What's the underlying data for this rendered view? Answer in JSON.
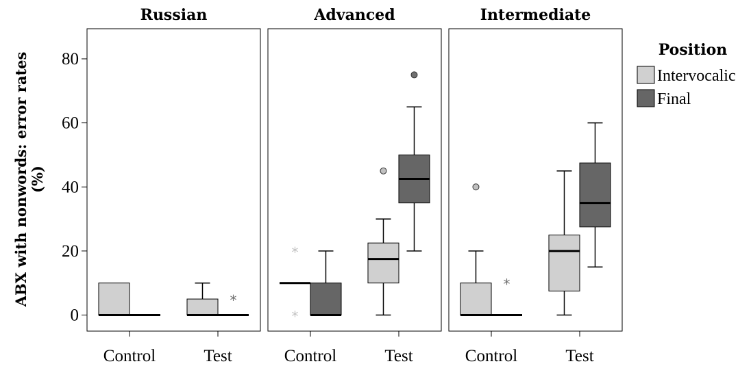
{
  "chart_data": {
    "type": "boxplot",
    "ylabel_line1": "ABX with nonwords: error rates",
    "ylabel_line2": "(%)",
    "ylim": [
      -5,
      90
    ],
    "yticks": [
      0,
      20,
      40,
      60,
      80
    ],
    "ytick_labels": [
      "0",
      "20",
      "40",
      "60",
      "80"
    ],
    "categories": [
      "Control",
      "Test"
    ],
    "legend": {
      "title": "Position",
      "placement": "right",
      "items": [
        {
          "label": "Intervocalic",
          "color": "#d0d0d0"
        },
        {
          "label": "Final",
          "color": "#666666"
        }
      ]
    },
    "series_colors": {
      "Intervocalic": "#d0d0d0",
      "Final": "#666666"
    },
    "outlier_colors": {
      "Intervocalic": "#c0c0c0",
      "Final": "#707070"
    },
    "panels": [
      {
        "title": "Russian",
        "groups": [
          {
            "category": "Control",
            "series": "Intervocalic",
            "q1": 0,
            "median": 0,
            "q3": 10,
            "whisker_low": 0,
            "whisker_high": 10,
            "outliers": [],
            "extremes": []
          },
          {
            "category": "Control",
            "series": "Final",
            "q1": 0,
            "median": 0,
            "q3": 0,
            "whisker_low": 0,
            "whisker_high": 0,
            "outliers": [],
            "extremes": []
          },
          {
            "category": "Test",
            "series": "Intervocalic",
            "q1": 0,
            "median": 0,
            "q3": 5,
            "whisker_low": 0,
            "whisker_high": 10,
            "outliers": [],
            "extremes": []
          },
          {
            "category": "Test",
            "series": "Final",
            "q1": 0,
            "median": 0,
            "q3": 0,
            "whisker_low": 0,
            "whisker_high": 0,
            "outliers": [],
            "extremes": [
              5
            ]
          }
        ]
      },
      {
        "title": "Advanced",
        "groups": [
          {
            "category": "Control",
            "series": "Intervocalic",
            "q1": 10,
            "median": 10,
            "q3": 10,
            "whisker_low": 10,
            "whisker_high": 10,
            "outliers": [],
            "extremes": [
              20,
              0
            ]
          },
          {
            "category": "Control",
            "series": "Final",
            "q1": 0,
            "median": 0,
            "q3": 10,
            "whisker_low": 0,
            "whisker_high": 20,
            "outliers": [],
            "extremes": []
          },
          {
            "category": "Test",
            "series": "Intervocalic",
            "q1": 10,
            "median": 17.5,
            "q3": 22.5,
            "whisker_low": 0,
            "whisker_high": 30,
            "outliers": [
              45
            ],
            "extremes": []
          },
          {
            "category": "Test",
            "series": "Final",
            "q1": 35,
            "median": 42.5,
            "q3": 50,
            "whisker_low": 20,
            "whisker_high": 65,
            "outliers": [
              75
            ],
            "extremes": []
          }
        ]
      },
      {
        "title": "Intermediate",
        "groups": [
          {
            "category": "Control",
            "series": "Intervocalic",
            "q1": 0,
            "median": 0,
            "q3": 10,
            "whisker_low": 0,
            "whisker_high": 20,
            "outliers": [
              40
            ],
            "extremes": []
          },
          {
            "category": "Control",
            "series": "Final",
            "q1": 0,
            "median": 0,
            "q3": 0,
            "whisker_low": 0,
            "whisker_high": 0,
            "outliers": [],
            "extremes": [
              10
            ]
          },
          {
            "category": "Test",
            "series": "Intervocalic",
            "q1": 7.5,
            "median": 20,
            "q3": 25,
            "whisker_low": 0,
            "whisker_high": 45,
            "outliers": [],
            "extremes": []
          },
          {
            "category": "Test",
            "series": "Final",
            "q1": 27.5,
            "median": 35,
            "q3": 47.5,
            "whisker_low": 15,
            "whisker_high": 60,
            "outliers": [],
            "extremes": []
          }
        ]
      }
    ]
  }
}
